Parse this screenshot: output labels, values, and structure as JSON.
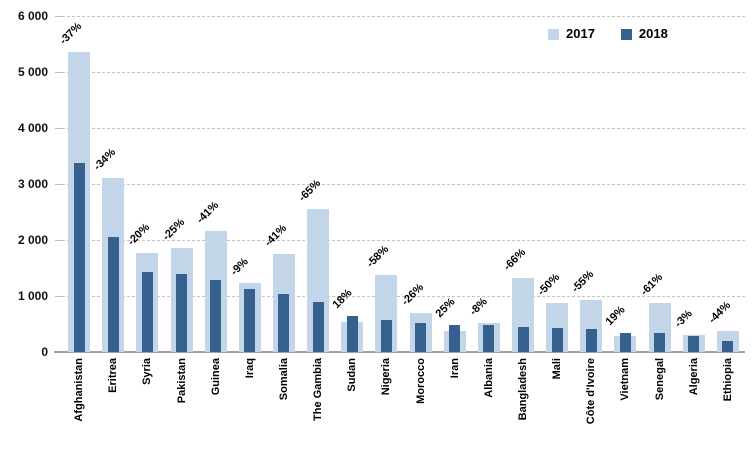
{
  "legend": {
    "items": [
      {
        "label": "2017",
        "color": "#c2d5e9"
      },
      {
        "label": "2018",
        "color": "#36618e"
      }
    ]
  },
  "chart_data": {
    "type": "bar",
    "title": "",
    "xlabel": "",
    "ylabel": "",
    "ylim": [
      0,
      6000
    ],
    "grid": "horizontal-dashed",
    "legend_position": "top-right",
    "bar_style": "overlapped (2018 narrow bar drawn centered on top of 2017 wide bar)",
    "y_ticks": [
      {
        "label": "6 000",
        "value": 6000
      },
      {
        "label": "5 000",
        "value": 5000
      },
      {
        "label": "4 000",
        "value": 4000
      },
      {
        "label": "3 000",
        "value": 3000
      },
      {
        "label": "2 000",
        "value": 2000
      },
      {
        "label": "1 000",
        "value": 1000
      },
      {
        "label": "0",
        "value": 0
      }
    ],
    "categories": [
      "Afghanistan",
      "Eritrea",
      "Syria",
      "Pakistan",
      "Guinea",
      "Iraq",
      "Somalia",
      "The Gambia",
      "Sudan",
      "Nigeria",
      "Morocco",
      "Iran",
      "Albania",
      "Bangladesh",
      "Mali",
      "Côte d'Ivoire",
      "Vietnam",
      "Senegal",
      "Algeria",
      "Ethiopia"
    ],
    "series": [
      {
        "name": "2017",
        "color": "#c2d5e9",
        "values": [
          5350,
          3100,
          1770,
          1860,
          2160,
          1240,
          1750,
          2560,
          540,
          1380,
          690,
          380,
          520,
          1330,
          870,
          920,
          290,
          880,
          300,
          370
        ]
      },
      {
        "name": "2018",
        "color": "#36618e",
        "values": [
          3370,
          2050,
          1420,
          1400,
          1280,
          1130,
          1030,
          900,
          640,
          580,
          510,
          475,
          480,
          450,
          435,
          415,
          345,
          345,
          290,
          205
        ]
      }
    ],
    "bar_labels": [
      "-37%",
      "-34%",
      "-20%",
      "-25%",
      "-41%",
      "-9%",
      "-41%",
      "-65%",
      "18%",
      "-58%",
      "-26%",
      "25%",
      "-8%",
      "-66%",
      "-50%",
      "-55%",
      "19%",
      "-61%",
      "-3%",
      "-44%"
    ]
  }
}
